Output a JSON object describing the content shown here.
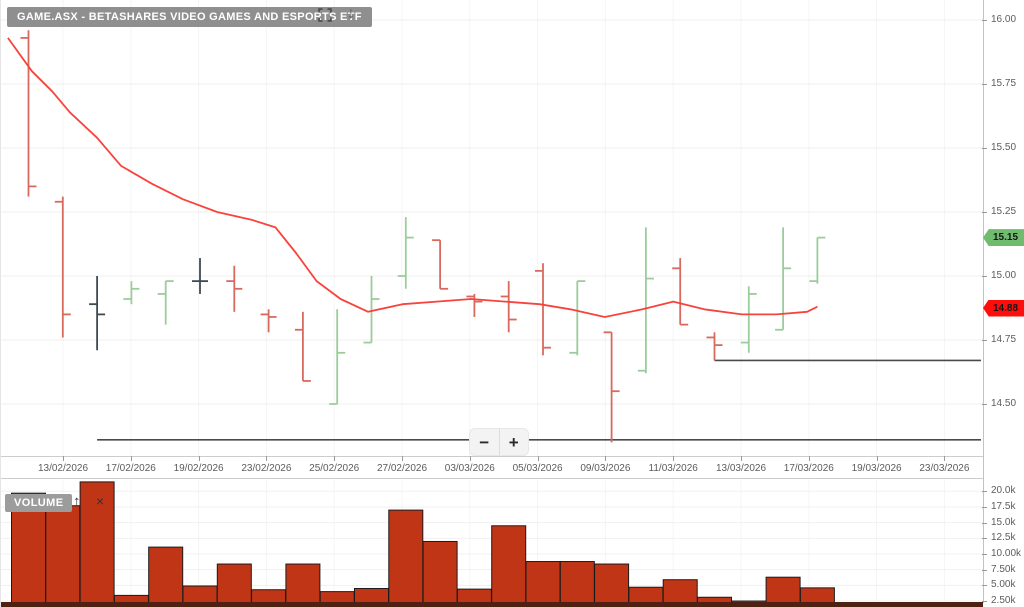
{
  "header": {
    "title": "GAME.ASX - BETASHARES VIDEO GAMES AND ESPORTS ETF"
  },
  "toolbar": {
    "fullscreen_icon": "fullscreen-expand",
    "collapse_icon_glyph": "↓"
  },
  "price_axis": {
    "ticks": [
      {
        "label": "16.00",
        "value": 16.0
      },
      {
        "label": "15.75",
        "value": 15.75
      },
      {
        "label": "15.50",
        "value": 15.5
      },
      {
        "label": "15.25",
        "value": 15.25
      },
      {
        "label": "15.00",
        "value": 15.0
      },
      {
        "label": "14.75",
        "value": 14.75
      },
      {
        "label": "14.50",
        "value": 14.5
      }
    ],
    "last_price_badge": {
      "label": "15.15",
      "value": 15.15,
      "color": "#6fbc6f"
    },
    "ma_badge": {
      "label": "14.88",
      "value": 14.875,
      "color": "#fe0d0d"
    }
  },
  "date_axis": {
    "labels": [
      "13/02/2026",
      "17/02/2026",
      "19/02/2026",
      "23/02/2026",
      "25/02/2026",
      "27/02/2026",
      "03/03/2026",
      "05/03/2026",
      "09/03/2026",
      "11/03/2026",
      "13/03/2026",
      "17/03/2026",
      "19/03/2026",
      "23/03/2026"
    ]
  },
  "volume_axis": {
    "ticks": [
      {
        "label": "20.0k",
        "value": 20000
      },
      {
        "label": "17.5k",
        "value": 17500
      },
      {
        "label": "15.0k",
        "value": 15000
      },
      {
        "label": "12.5k",
        "value": 12500
      },
      {
        "label": "10.00k",
        "value": 10000
      },
      {
        "label": "7.50k",
        "value": 7500
      },
      {
        "label": "5.00k",
        "value": 5000
      },
      {
        "label": "2.50k",
        "value": 2500
      }
    ]
  },
  "volume_panel": {
    "label": "VOLUME",
    "up_icon_glyph": "↑",
    "close_icon_glyph": "×"
  },
  "zoom_control": {
    "minus": "−",
    "plus": "+"
  },
  "chart_data": {
    "type": "ohlc",
    "title": "GAME.ASX - BETASHARES VIDEO GAMES AND ESPORTS ETF",
    "price_axis_range": [
      14.3,
      16.08
    ],
    "grid": true,
    "legend_position": "none",
    "colors": {
      "up": "#9bcc9b",
      "down": "#d8695e",
      "flat": "#3e4a52",
      "volume_fill": "#c13517",
      "volume_stroke": "#1b1b1b",
      "level_line": "#4a4a4a"
    },
    "candles": [
      {
        "date": "12/02/2026",
        "o": 15.93,
        "h": 15.96,
        "l": 15.31,
        "c": 15.35,
        "volume": 19700
      },
      {
        "date": "13/02/2026",
        "o": 15.29,
        "h": 15.31,
        "l": 14.76,
        "c": 14.85,
        "volume": 17700
      },
      {
        "date": "16/02/2026",
        "o": 14.89,
        "h": 15.0,
        "l": 14.71,
        "c": 14.85,
        "volume": 21500
      },
      {
        "date": "17/02/2026",
        "o": 14.91,
        "h": 14.98,
        "l": 14.89,
        "c": 14.95,
        "volume": 3400
      },
      {
        "date": "18/02/2026",
        "o": 14.93,
        "h": 14.98,
        "l": 14.81,
        "c": 14.98,
        "volume": 11100
      },
      {
        "date": "19/02/2026",
        "o": 14.98,
        "h": 15.07,
        "l": 14.93,
        "c": 14.98,
        "volume": 4900
      },
      {
        "date": "20/02/2026",
        "o": 14.98,
        "h": 15.04,
        "l": 14.86,
        "c": 14.95,
        "volume": 8400
      },
      {
        "date": "23/02/2026",
        "o": 14.85,
        "h": 14.87,
        "l": 14.78,
        "c": 14.84,
        "volume": 4300
      },
      {
        "date": "24/02/2026",
        "o": 14.79,
        "h": 14.86,
        "l": 14.59,
        "c": 14.59,
        "volume": 8400
      },
      {
        "date": "25/02/2026",
        "o": 14.5,
        "h": 14.87,
        "l": 14.5,
        "c": 14.7,
        "volume": 4000
      },
      {
        "date": "26/02/2026",
        "o": 14.74,
        "h": 15.0,
        "l": 14.74,
        "c": 14.91,
        "volume": 4500
      },
      {
        "date": "27/02/2026",
        "o": 15.0,
        "h": 15.23,
        "l": 14.95,
        "c": 15.15,
        "volume": 17000
      },
      {
        "date": "02/03/2026",
        "o": 15.14,
        "h": 15.14,
        "l": 14.95,
        "c": 14.95,
        "volume": 12000
      },
      {
        "date": "03/03/2026",
        "o": 14.92,
        "h": 14.93,
        "l": 14.84,
        "c": 14.9,
        "volume": 4400
      },
      {
        "date": "04/03/2026",
        "o": 14.92,
        "h": 14.98,
        "l": 14.78,
        "c": 14.83,
        "volume": 14500
      },
      {
        "date": "05/03/2026",
        "o": 15.02,
        "h": 15.05,
        "l": 14.69,
        "c": 14.72,
        "volume": 8800
      },
      {
        "date": "06/03/2026",
        "o": 14.7,
        "h": 14.98,
        "l": 14.69,
        "c": 14.98,
        "volume": 8800
      },
      {
        "date": "09/03/2026",
        "o": 14.78,
        "h": 14.78,
        "l": 14.35,
        "c": 14.55,
        "volume": 8400
      },
      {
        "date": "10/03/2026",
        "o": 14.63,
        "h": 15.19,
        "l": 14.62,
        "c": 14.99,
        "volume": 4700
      },
      {
        "date": "11/03/2026",
        "o": 15.03,
        "h": 15.07,
        "l": 14.81,
        "c": 14.81,
        "volume": 5900
      },
      {
        "date": "12/03/2026",
        "o": 14.76,
        "h": 14.78,
        "l": 14.67,
        "c": 14.73,
        "volume": 3100
      },
      {
        "date": "13/03/2026",
        "o": 14.74,
        "h": 14.96,
        "l": 14.7,
        "c": 14.93,
        "volume": 2500
      },
      {
        "date": "16/03/2026",
        "o": 14.79,
        "h": 15.19,
        "l": 14.79,
        "c": 15.03,
        "volume": 6300
      },
      {
        "date": "17/03/2026",
        "o": 14.98,
        "h": 15.15,
        "l": 14.97,
        "c": 15.15,
        "volume": 4600
      }
    ],
    "moving_average": {
      "name": "moving-average-line",
      "color": "#f8433c",
      "points_index_price": [
        [
          -0.6,
          15.93
        ],
        [
          0.1,
          15.8
        ],
        [
          0.7,
          15.72
        ],
        [
          1.2,
          15.64
        ],
        [
          2.0,
          15.54
        ],
        [
          2.7,
          15.43
        ],
        [
          3.6,
          15.36
        ],
        [
          4.5,
          15.3
        ],
        [
          5.5,
          15.25
        ],
        [
          6.5,
          15.22
        ],
        [
          7.2,
          15.19
        ],
        [
          7.8,
          15.09
        ],
        [
          8.4,
          14.98
        ],
        [
          9.1,
          14.91
        ],
        [
          9.9,
          14.86
        ],
        [
          10.9,
          14.89
        ],
        [
          11.9,
          14.9
        ],
        [
          12.9,
          14.91
        ],
        [
          13.9,
          14.9
        ],
        [
          14.9,
          14.89
        ],
        [
          15.8,
          14.87
        ],
        [
          16.8,
          14.84
        ],
        [
          17.9,
          14.87
        ],
        [
          18.8,
          14.9
        ],
        [
          19.7,
          14.87
        ],
        [
          20.8,
          14.85
        ],
        [
          21.8,
          14.85
        ],
        [
          22.7,
          14.86
        ],
        [
          23.0,
          14.88
        ]
      ]
    },
    "horizontal_lines": [
      {
        "price": 14.36,
        "start_index": 2
      },
      {
        "price": 14.67,
        "start_index": 20
      }
    ]
  }
}
